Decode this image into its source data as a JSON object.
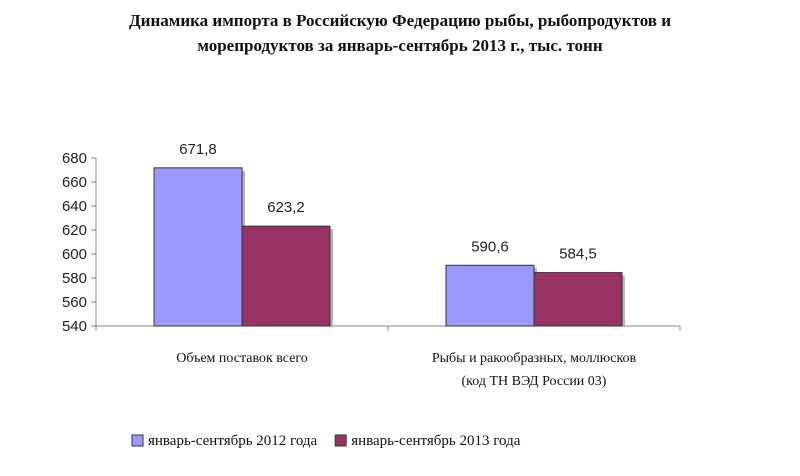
{
  "chart_data": {
    "type": "bar",
    "title_line1": "Динамика импорта в Российскую Федерацию рыбы, рыбопродуктов и",
    "title_line2": "морепродуктов за январь-сентябрь 2013 г., тыс. тонн",
    "categories": [
      [
        "Объем поставок всего"
      ],
      [
        "Рыбы и ракообразных, моллюсков",
        "(код ТН ВЭД России 03)"
      ]
    ],
    "series": [
      {
        "name": "январь-сентябрь 2012 года",
        "values": [
          671.8,
          590.6
        ],
        "labels": [
          "671,8",
          "590,6"
        ],
        "color": "#9999ff"
      },
      {
        "name": "январь-сентябрь 2013 года",
        "values": [
          623.2,
          584.5
        ],
        "labels": [
          "623,2",
          "584,5"
        ],
        "color": "#993366"
      }
    ],
    "ylim": [
      540,
      680
    ],
    "yticks": [
      "540",
      "560",
      "580",
      "600",
      "620",
      "640",
      "660",
      "680"
    ],
    "ystep": 20,
    "grid": false,
    "legend_position": "bottom"
  }
}
